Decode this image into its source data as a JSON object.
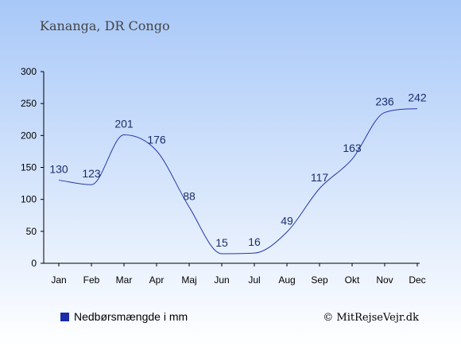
{
  "chart_data": {
    "type": "line",
    "title": "Kananga, DR Congo",
    "categories": [
      "Jan",
      "Feb",
      "Mar",
      "Apr",
      "Maj",
      "Jun",
      "Jul",
      "Aug",
      "Sep",
      "Okt",
      "Nov",
      "Dec"
    ],
    "series": [
      {
        "name": "Nedbørsmængde i mm",
        "values": [
          130,
          123,
          201,
          176,
          88,
          15,
          16,
          49,
          117,
          163,
          236,
          242
        ]
      }
    ],
    "y_ticks": [
      0,
      50,
      100,
      150,
      200,
      250,
      300
    ],
    "ylim": [
      0,
      300
    ],
    "grid": false,
    "legend_position": "bottom-left",
    "credit": "© MitRejseVejr.dk"
  },
  "colors": {
    "line": "#2538ac",
    "legend_marker": "#1a2aa8",
    "title_text": "#444444",
    "axis": "#000000",
    "label_text": "#1a2d6b",
    "background_top": "#a8c8f8",
    "background_bottom": "#ffffff"
  }
}
